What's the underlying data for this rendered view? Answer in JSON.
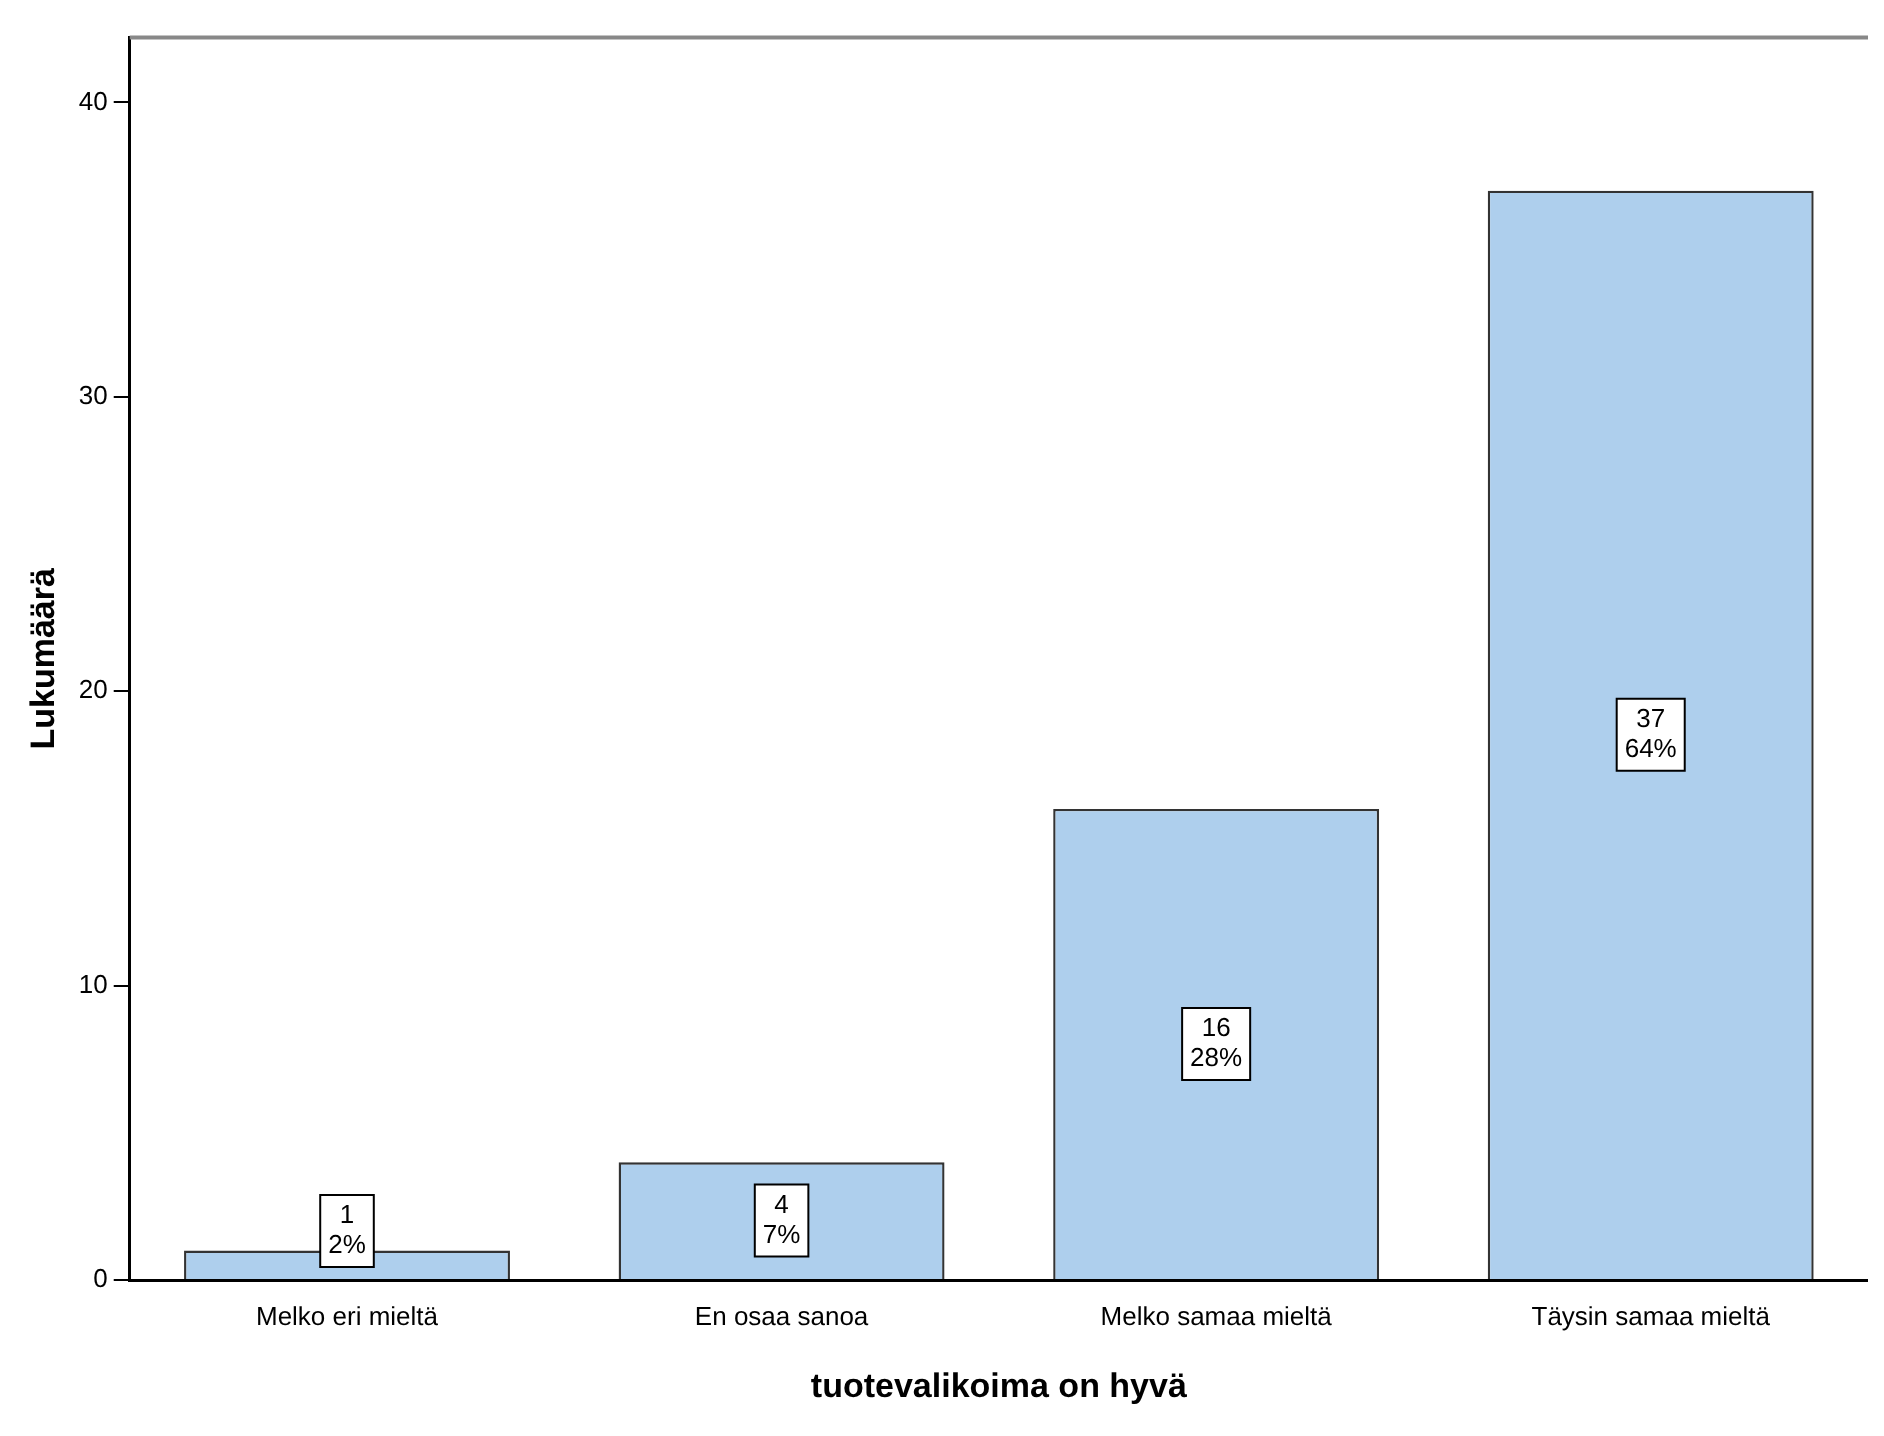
{
  "chart_data": {
    "type": "bar",
    "xlabel": "tuotevalikoima on hyvä",
    "ylabel": "Lukumäärä",
    "categories": [
      "Melko eri mieltä",
      "En osaa sanoa",
      "Melko samaa mieltä",
      "Täysin samaa mieltä"
    ],
    "values": [
      1,
      4,
      16,
      37
    ],
    "color": "#aecfed",
    "value_labels": [
      "1\n2%",
      "4\n7%",
      "16\n28%",
      "37\n64%"
    ],
    "ylim": [
      0,
      42.2
    ],
    "yticks": [
      0,
      10,
      20,
      30,
      40
    ],
    "grid": false,
    "legend": false
  }
}
